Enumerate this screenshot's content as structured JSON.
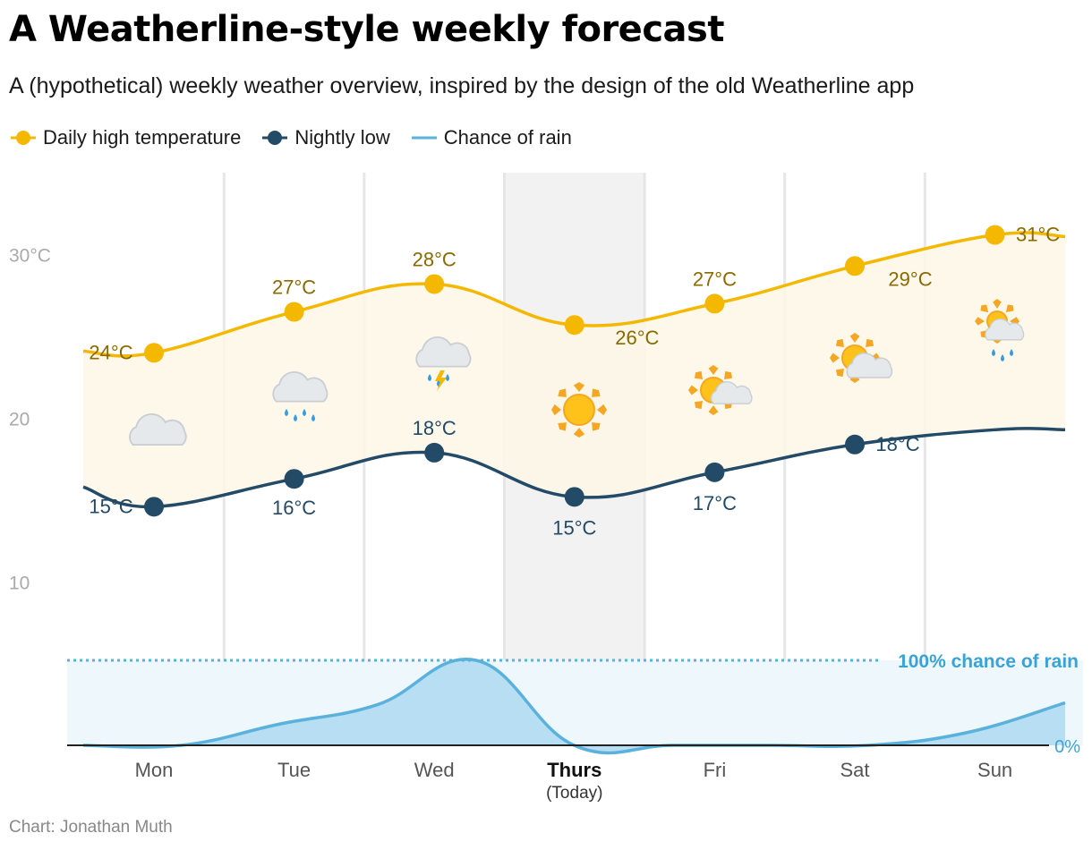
{
  "title": "A Weatherline-style weekly forecast",
  "subtitle": "A (hypothetical) weekly weather overview, inspired by the design of the old Weatherline app",
  "footer": "Chart: Jonathan Muth",
  "legend": [
    {
      "label": "Daily high temperature",
      "color": "#f5b800",
      "marker": "dot-line"
    },
    {
      "label": "Nightly low",
      "color": "#234a66",
      "marker": "dot-line"
    },
    {
      "label": "Chance of rain",
      "color": "#5ab2dc",
      "marker": "line"
    }
  ],
  "chart_data": {
    "type": "line",
    "categories": [
      "Mon",
      "Tue",
      "Wed",
      "Thurs",
      "Fri",
      "Sat",
      "Sun"
    ],
    "today_index": 3,
    "today_sublabel": "(Today)",
    "y_ticks": [
      "30°C",
      "20",
      "10"
    ],
    "y_tick_values": [
      30,
      20,
      10
    ],
    "ylim": [
      0,
      35
    ],
    "series": [
      {
        "name": "Daily high temperature",
        "color": "#f5b800",
        "label_color": "#8a6a00",
        "values": [
          24,
          26.5,
          28.2,
          25.7,
          27,
          29.3,
          31.2
        ],
        "labels": [
          "24°C",
          "27°C",
          "28°C",
          "26°C",
          "27°C",
          "29°C",
          "31°C"
        ],
        "start_value": 24.1,
        "end_value": 31.1
      },
      {
        "name": "Nightly low",
        "color": "#234a66",
        "label_color": "#234a66",
        "values": [
          14.6,
          16.3,
          17.9,
          15.2,
          16.7,
          18.4,
          19.3
        ],
        "labels": [
          "15°C",
          "16°C",
          "18°C",
          "15°C",
          "17°C",
          "18°C",
          ""
        ],
        "start_value": 15.8,
        "end_value": 19.3
      }
    ],
    "rain": {
      "name": "Chance of rain",
      "color": "#5ab2dc",
      "values": [
        0,
        0,
        25,
        48,
        100,
        0,
        0,
        0,
        0,
        15,
        50
      ],
      "max_label": "100% chance of rain",
      "zero_label": "0%"
    },
    "weather_icons": [
      "cloudy",
      "rain",
      "thunderstorm",
      "sunny",
      "partly-cloudy",
      "mostly-sunny",
      "sun-showers"
    ],
    "colors": {
      "band": "#fdf7e6",
      "today_bg": "#f2f2f2",
      "gridline": "#e6e6e6",
      "rain_fill": "#b7def2",
      "rain_band": "#eef7fc",
      "axis_text": "#aaaaaa",
      "category_text": "#555555"
    }
  }
}
